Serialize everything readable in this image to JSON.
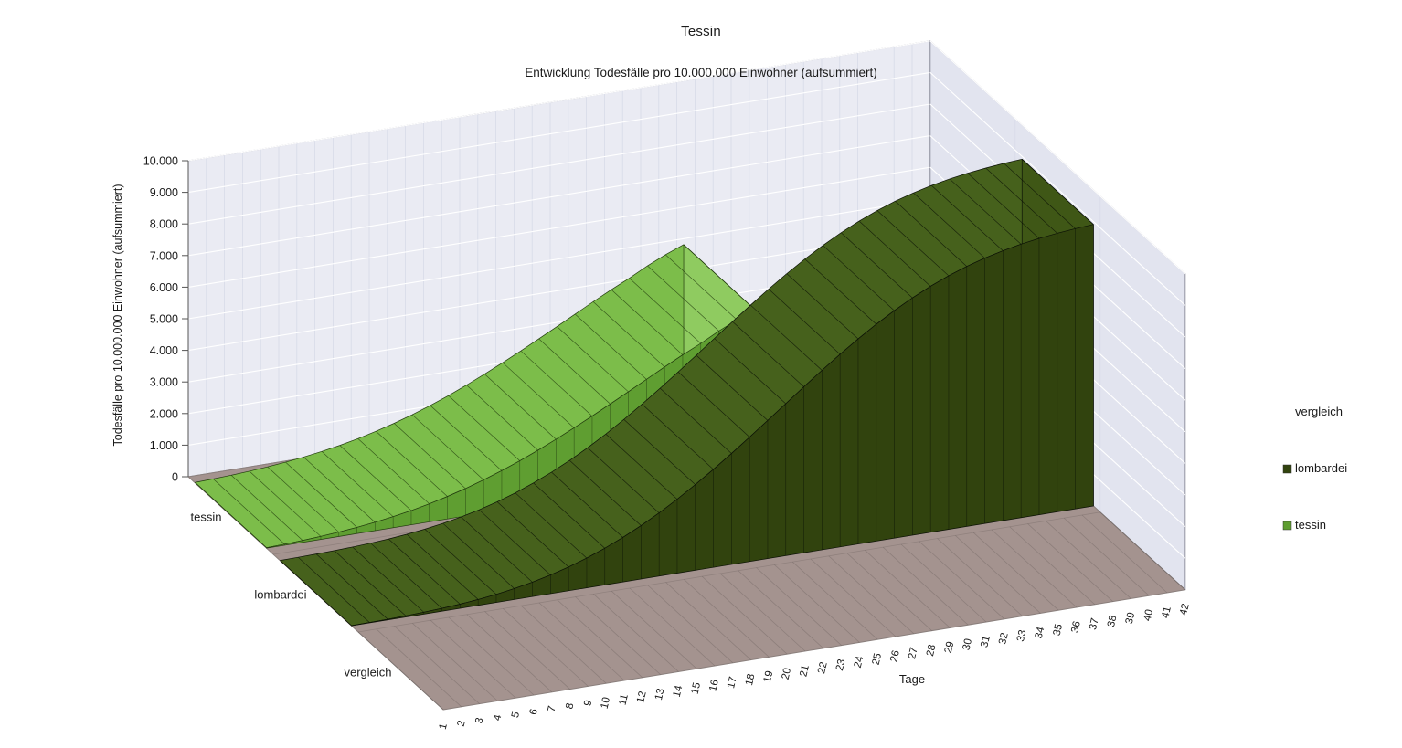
{
  "title": "Tessin",
  "subtitle": "Entwicklung Todesfälle pro 10.000.000 Einwohner (aufsummiert)",
  "chart_data": {
    "type": "area",
    "projection": "3d-deep",
    "x_axis": {
      "title": "Tage",
      "categories": [
        "1",
        "2",
        "3",
        "4",
        "5",
        "6",
        "7",
        "8",
        "9",
        "10",
        "11",
        "12",
        "13",
        "14",
        "15",
        "16",
        "17",
        "18",
        "19",
        "20",
        "21",
        "22",
        "23",
        "24",
        "25",
        "26",
        "27",
        "28",
        "29",
        "30",
        "31",
        "32",
        "33",
        "34",
        "35",
        "36",
        "37",
        "38",
        "39",
        "40",
        "41",
        "42"
      ]
    },
    "y_axis": {
      "title": "Todesfälle pro 10.000.000 Einwohner (aufsummiert)",
      "min": 0,
      "max": 10000,
      "step": 1000,
      "tick_labels": [
        "0",
        "1.000",
        "2.000",
        "3.000",
        "4.000",
        "5.000",
        "6.000",
        "7.000",
        "8.000",
        "9.000",
        "10.000"
      ]
    },
    "series_axis_labels_back_to_front": [
      "tessin",
      "lombardei",
      "vergleich"
    ],
    "series": [
      {
        "name": "tessin",
        "depth_row": 2,
        "color_top": "#7cbd4a",
        "color_front": "#5f9e31",
        "color_side": "#8fcb60",
        "edge_color": "#223c0e",
        "values": [
          15,
          35,
          60,
          95,
          140,
          195,
          265,
          350,
          450,
          570,
          710,
          870,
          1050,
          1250,
          1470,
          1710,
          1965,
          2235,
          2515,
          2805,
          3100,
          3400,
          3700,
          3990,
          4260,
          4560,
          4820,
          5045
        ]
      },
      {
        "name": "lombardei",
        "depth_row": 1,
        "color_top": "#46611c",
        "color_front": "#31430e",
        "color_side": "#3f5716",
        "edge_color": "#0c1206",
        "values": [
          5,
          12,
          22,
          38,
          60,
          90,
          130,
          185,
          255,
          345,
          455,
          590,
          750,
          940,
          1160,
          1410,
          1690,
          2000,
          2340,
          2710,
          3100,
          3510,
          3935,
          4370,
          4810,
          5250,
          5680,
          6095,
          6490,
          6860,
          7200,
          7510,
          7785,
          8025,
          8230,
          8400,
          8540,
          8655,
          8745,
          8815,
          8870,
          8910
        ]
      },
      {
        "name": "vergleich",
        "depth_row": 0,
        "color_top": "",
        "color_front": "",
        "color_side": "",
        "edge_color": "",
        "values": []
      }
    ],
    "legend": {
      "position": "right",
      "items": [
        {
          "label": "vergleich",
          "color": ""
        },
        {
          "label": "lombardei",
          "color": "#31430e"
        },
        {
          "label": "tessin",
          "color": "#5f9e31"
        }
      ]
    },
    "wall_color": "#eaebf3",
    "right_wall_color": "#e2e4ef",
    "floor_color": "#a4938f",
    "grid_major_color": "#ffffff",
    "grid_minor_color": "#d7dae8"
  }
}
